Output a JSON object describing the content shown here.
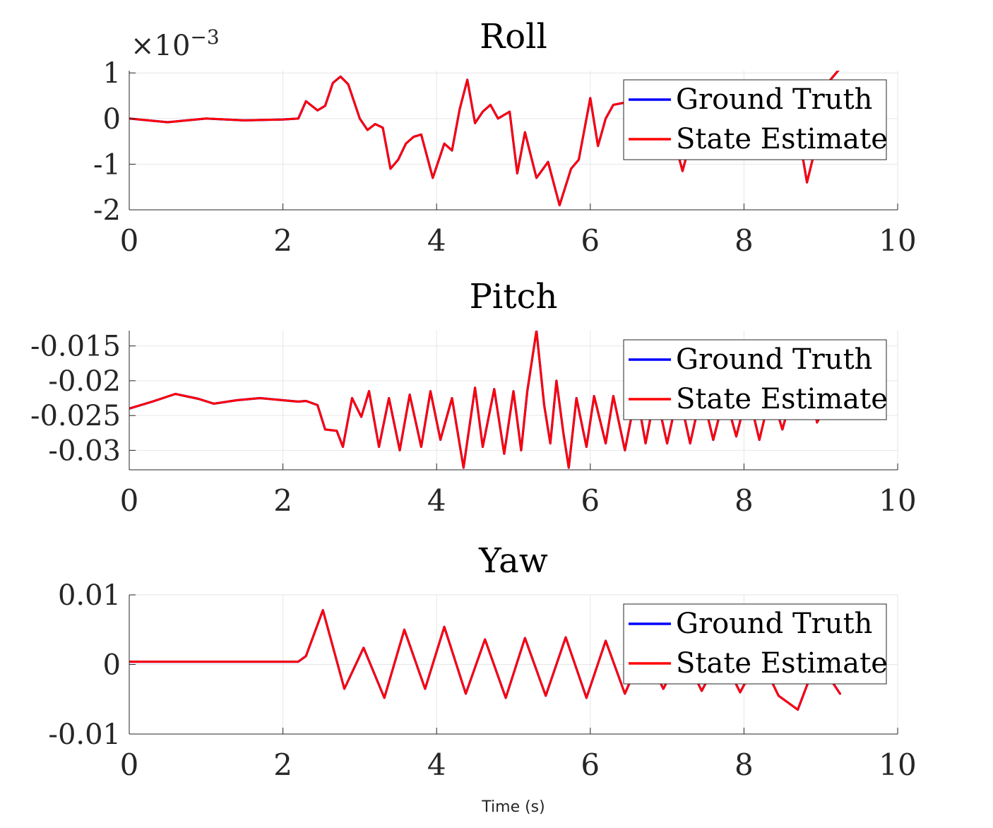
{
  "figure": {
    "xlabel": "Time (s)"
  },
  "chart_data": [
    {
      "type": "line",
      "title": "Roll",
      "y_multiplier": "×10",
      "y_exponent": "−3",
      "xlim": [
        0,
        10
      ],
      "ylim": [
        -0.002,
        0.00105
      ],
      "xticks": [
        0,
        2,
        4,
        6,
        8,
        10
      ],
      "xtick_labels": [
        "0",
        "2",
        "4",
        "6",
        "8",
        "10"
      ],
      "yticks": [
        0.001,
        0,
        -0.001,
        -0.002
      ],
      "ytick_labels": [
        "1",
        "0",
        "-1",
        "-2"
      ],
      "grid": true,
      "legend": {
        "placement": "top-right",
        "entries": [
          "Ground Truth",
          "State Estimate"
        ]
      },
      "series": [
        {
          "name": "Ground Truth",
          "color": "#0000ff",
          "x": [
            0,
            0.5,
            1.0,
            1.5,
            2.0,
            2.2,
            2.3,
            2.45,
            2.55,
            2.65,
            2.75,
            2.85,
            3.0,
            3.1,
            3.2,
            3.3,
            3.4,
            3.5,
            3.6,
            3.7,
            3.8,
            3.95,
            4.1,
            4.2,
            4.3,
            4.4,
            4.5,
            4.6,
            4.7,
            4.8,
            4.95,
            5.05,
            5.15,
            5.3,
            5.45,
            5.6,
            5.75,
            5.85,
            6.0,
            6.1,
            6.2,
            6.3,
            6.45,
            6.55,
            6.65,
            6.8,
            6.95,
            7.05,
            7.2,
            7.35,
            7.5,
            7.7,
            7.9,
            8.1,
            8.3,
            8.5,
            8.7,
            8.82,
            8.95,
            9.1,
            9.25
          ],
          "y": [
            0.0,
            -8e-05,
            0.0,
            -4e-05,
            -2e-05,
            0.0,
            0.00038,
            0.00018,
            0.00028,
            0.00078,
            0.00092,
            0.00075,
            0.0,
            -0.00025,
            -0.00012,
            -0.0002,
            -0.0011,
            -0.0009,
            -0.00055,
            -0.0004,
            -0.00035,
            -0.0013,
            -0.00055,
            -0.0007,
            0.0002,
            0.00085,
            -0.0001,
            0.00015,
            0.0003,
            0.0,
            0.00015,
            -0.0012,
            -0.0003,
            -0.0013,
            -0.00095,
            -0.0019,
            -0.0011,
            -0.0009,
            0.00045,
            -0.0006,
            0.0,
            0.0003,
            0.00035,
            0.0001,
            -0.0003,
            0.0001,
            -0.0003,
            -0.0002,
            -0.00115,
            -0.0002,
            0.0003,
            0.00035,
            0.0003,
            0.00035,
            0.0004,
            0.0003,
            -0.0002,
            -0.0014,
            -0.0005,
            0.0008,
            0.0011
          ]
        },
        {
          "name": "State Estimate",
          "color": "#ff0000",
          "x": [
            0,
            0.5,
            1.0,
            1.5,
            2.0,
            2.2,
            2.3,
            2.45,
            2.55,
            2.65,
            2.75,
            2.85,
            3.0,
            3.1,
            3.2,
            3.3,
            3.4,
            3.5,
            3.6,
            3.7,
            3.8,
            3.95,
            4.1,
            4.2,
            4.3,
            4.4,
            4.5,
            4.6,
            4.7,
            4.8,
            4.95,
            5.05,
            5.15,
            5.3,
            5.45,
            5.6,
            5.75,
            5.85,
            6.0,
            6.1,
            6.2,
            6.3,
            6.45,
            6.55,
            6.65,
            6.8,
            6.95,
            7.05,
            7.2,
            7.35,
            7.5,
            7.7,
            7.9,
            8.1,
            8.3,
            8.5,
            8.7,
            8.82,
            8.95,
            9.1,
            9.25
          ],
          "y": [
            0.0,
            -8e-05,
            0.0,
            -4e-05,
            -2e-05,
            0.0,
            0.00038,
            0.00018,
            0.00028,
            0.00078,
            0.00092,
            0.00075,
            0.0,
            -0.00025,
            -0.00012,
            -0.0002,
            -0.0011,
            -0.0009,
            -0.00055,
            -0.0004,
            -0.00035,
            -0.0013,
            -0.00055,
            -0.0007,
            0.0002,
            0.00085,
            -0.0001,
            0.00015,
            0.0003,
            0.0,
            0.00015,
            -0.0012,
            -0.0003,
            -0.0013,
            -0.00095,
            -0.0019,
            -0.0011,
            -0.0009,
            0.00045,
            -0.0006,
            0.0,
            0.0003,
            0.00035,
            0.0001,
            -0.0003,
            0.0001,
            -0.0003,
            -0.0002,
            -0.00115,
            -0.0002,
            0.0003,
            0.00035,
            0.0003,
            0.00035,
            0.0004,
            0.0003,
            -0.0002,
            -0.0014,
            -0.0005,
            0.0008,
            0.0011
          ]
        }
      ]
    },
    {
      "type": "line",
      "title": "Pitch",
      "xlim": [
        0,
        10
      ],
      "ylim": [
        -0.0328,
        -0.0128
      ],
      "xticks": [
        0,
        2,
        4,
        6,
        8,
        10
      ],
      "xtick_labels": [
        "0",
        "2",
        "4",
        "6",
        "8",
        "10"
      ],
      "yticks": [
        -0.015,
        -0.02,
        -0.025,
        -0.03
      ],
      "ytick_labels": [
        "-0.015",
        "-0.02",
        "-0.025",
        "-0.03"
      ],
      "grid": true,
      "legend": {
        "placement": "top-right",
        "entries": [
          "Ground Truth",
          "State Estimate"
        ]
      },
      "series": [
        {
          "name": "Ground Truth",
          "color": "#0000ff",
          "x": [
            0,
            0.3,
            0.6,
            0.9,
            1.1,
            1.4,
            1.7,
            2.0,
            2.2,
            2.3,
            2.45,
            2.55,
            2.7,
            2.78,
            2.9,
            3.02,
            3.12,
            3.25,
            3.38,
            3.52,
            3.65,
            3.8,
            3.92,
            4.05,
            4.2,
            4.35,
            4.5,
            4.6,
            4.75,
            4.88,
            5.0,
            5.1,
            5.18,
            5.3,
            5.4,
            5.48,
            5.56,
            5.65,
            5.72,
            5.82,
            5.95,
            6.05,
            6.2,
            6.3,
            6.45,
            6.6,
            6.72,
            6.85,
            7.0,
            7.15,
            7.3,
            7.45,
            7.6,
            7.75,
            7.9,
            8.05,
            8.2,
            8.35,
            8.5,
            8.65,
            8.8,
            8.95,
            9.1,
            9.25
          ],
          "y": [
            -0.024,
            -0.023,
            -0.0219,
            -0.0226,
            -0.0233,
            -0.0228,
            -0.0225,
            -0.0228,
            -0.023,
            -0.0229,
            -0.0235,
            -0.027,
            -0.0272,
            -0.0295,
            -0.0225,
            -0.0252,
            -0.0215,
            -0.0295,
            -0.0225,
            -0.03,
            -0.022,
            -0.0295,
            -0.0215,
            -0.0285,
            -0.0225,
            -0.0325,
            -0.021,
            -0.0295,
            -0.0212,
            -0.0305,
            -0.0215,
            -0.03,
            -0.0215,
            -0.0128,
            -0.0235,
            -0.029,
            -0.02,
            -0.0275,
            -0.0325,
            -0.0225,
            -0.0295,
            -0.0222,
            -0.029,
            -0.0222,
            -0.03,
            -0.0215,
            -0.029,
            -0.0215,
            -0.029,
            -0.0215,
            -0.029,
            -0.0215,
            -0.0285,
            -0.022,
            -0.028,
            -0.0215,
            -0.0285,
            -0.0215,
            -0.027,
            -0.021,
            -0.0165,
            -0.026,
            -0.023,
            -0.025
          ]
        },
        {
          "name": "State Estimate",
          "color": "#ff0000",
          "x": [
            0,
            0.3,
            0.6,
            0.9,
            1.1,
            1.4,
            1.7,
            2.0,
            2.2,
            2.3,
            2.45,
            2.55,
            2.7,
            2.78,
            2.9,
            3.02,
            3.12,
            3.25,
            3.38,
            3.52,
            3.65,
            3.8,
            3.92,
            4.05,
            4.2,
            4.35,
            4.5,
            4.6,
            4.75,
            4.88,
            5.0,
            5.1,
            5.18,
            5.3,
            5.4,
            5.48,
            5.56,
            5.65,
            5.72,
            5.82,
            5.95,
            6.05,
            6.2,
            6.3,
            6.45,
            6.6,
            6.72,
            6.85,
            7.0,
            7.15,
            7.3,
            7.45,
            7.6,
            7.75,
            7.9,
            8.05,
            8.2,
            8.35,
            8.5,
            8.65,
            8.8,
            8.95,
            9.1,
            9.25
          ],
          "y": [
            -0.024,
            -0.023,
            -0.0219,
            -0.0226,
            -0.0233,
            -0.0228,
            -0.0225,
            -0.0228,
            -0.023,
            -0.0229,
            -0.0235,
            -0.027,
            -0.0272,
            -0.0295,
            -0.0225,
            -0.0252,
            -0.0215,
            -0.0295,
            -0.0225,
            -0.03,
            -0.022,
            -0.0295,
            -0.0215,
            -0.0285,
            -0.0225,
            -0.0325,
            -0.021,
            -0.0295,
            -0.0212,
            -0.0305,
            -0.0215,
            -0.03,
            -0.0215,
            -0.0128,
            -0.0235,
            -0.029,
            -0.02,
            -0.0275,
            -0.0325,
            -0.0225,
            -0.0295,
            -0.0222,
            -0.029,
            -0.0222,
            -0.03,
            -0.0215,
            -0.029,
            -0.0215,
            -0.029,
            -0.0215,
            -0.029,
            -0.0215,
            -0.0285,
            -0.022,
            -0.028,
            -0.0215,
            -0.0285,
            -0.0215,
            -0.027,
            -0.021,
            -0.0165,
            -0.026,
            -0.023,
            -0.025
          ]
        }
      ]
    },
    {
      "type": "line",
      "title": "Yaw",
      "xlim": [
        0,
        10
      ],
      "ylim": [
        -0.01,
        0.01
      ],
      "xticks": [
        0,
        2,
        4,
        6,
        8,
        10
      ],
      "xtick_labels": [
        "0",
        "2",
        "4",
        "6",
        "8",
        "10"
      ],
      "yticks": [
        0.01,
        0,
        -0.01
      ],
      "ytick_labels": [
        "0.01",
        "0",
        "-0.01"
      ],
      "grid": true,
      "legend": {
        "placement": "top-right",
        "entries": [
          "Ground Truth",
          "State Estimate"
        ]
      },
      "series": [
        {
          "name": "Ground Truth",
          "color": "#0000ff",
          "x": [
            0,
            1.0,
            2.2,
            2.3,
            2.52,
            2.8,
            3.05,
            3.32,
            3.58,
            3.85,
            4.1,
            4.38,
            4.63,
            4.9,
            5.15,
            5.42,
            5.68,
            5.95,
            6.2,
            6.45,
            6.7,
            6.95,
            7.2,
            7.45,
            7.7,
            7.95,
            8.2,
            8.45,
            8.7,
            8.95,
            9.25
          ],
          "y": [
            0.0004,
            0.0004,
            0.0004,
            0.0012,
            0.0078,
            -0.0035,
            0.0024,
            -0.0048,
            0.005,
            -0.0035,
            0.0054,
            -0.0042,
            0.0036,
            -0.0048,
            0.0038,
            -0.0045,
            0.0039,
            -0.0048,
            0.0034,
            -0.0042,
            0.0022,
            -0.0035,
            0.0018,
            -0.0038,
            0.0015,
            -0.004,
            0.0012,
            -0.0045,
            -0.0065,
            0.0008,
            -0.0042
          ]
        },
        {
          "name": "State Estimate",
          "color": "#ff0000",
          "x": [
            0,
            1.0,
            2.2,
            2.3,
            2.52,
            2.8,
            3.05,
            3.32,
            3.58,
            3.85,
            4.1,
            4.38,
            4.63,
            4.9,
            5.15,
            5.42,
            5.68,
            5.95,
            6.2,
            6.45,
            6.7,
            6.95,
            7.2,
            7.45,
            7.7,
            7.95,
            8.2,
            8.45,
            8.7,
            8.95,
            9.25
          ],
          "y": [
            0.0004,
            0.0004,
            0.0004,
            0.0012,
            0.0078,
            -0.0035,
            0.0024,
            -0.0048,
            0.005,
            -0.0035,
            0.0054,
            -0.0042,
            0.0036,
            -0.0048,
            0.0038,
            -0.0045,
            0.0039,
            -0.0048,
            0.0034,
            -0.0042,
            0.0022,
            -0.0035,
            0.0018,
            -0.0038,
            0.0015,
            -0.004,
            0.0012,
            -0.0045,
            -0.0065,
            0.0008,
            -0.0042
          ]
        }
      ]
    }
  ]
}
